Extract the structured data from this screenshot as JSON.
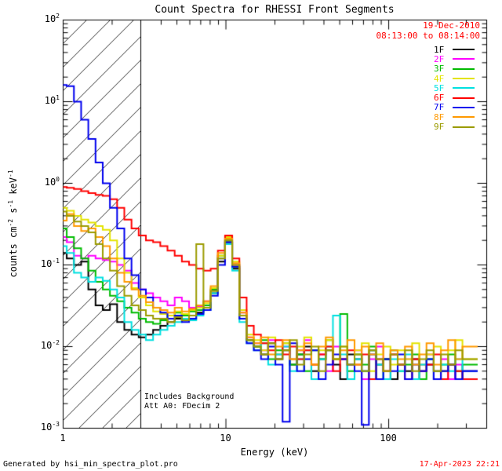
{
  "title": "Count Spectra for RHESSI Front Segments",
  "annotations": {
    "date": "19-Dec-2010",
    "time_range": "08:13:00 to 08:14:00",
    "includes_background": "Includes Background",
    "attenuator": "Att A0: FDecim 2",
    "generated_by": "Generated by hsi_min_spectra_plot.pro",
    "generated_date": "17-Apr-2023 22:21"
  },
  "colors": {
    "background": "#FFFFFF",
    "axis": "#000000",
    "annotation_red": "#FF0000"
  },
  "chart_data": {
    "type": "line",
    "mode": "histogram-step",
    "x_scale": "log",
    "y_scale": "log",
    "xlim": [
      1,
      400
    ],
    "ylim": [
      0.001,
      100
    ],
    "xlabel": "Energy (keV)",
    "ylabel": "counts cm^-2 s^-1 keV^-1",
    "ylabel_parts": [
      {
        "t": "counts cm"
      },
      {
        "t": "-2",
        "sup": true
      },
      {
        "t": " s"
      },
      {
        "t": "-1",
        "sup": true
      },
      {
        "t": " keV"
      },
      {
        "t": "-1",
        "sup": true
      }
    ],
    "x_ticks": [
      1,
      10,
      100
    ],
    "x_tick_labels": [
      "1",
      "10",
      "100"
    ],
    "y_ticks": [
      0.001,
      0.01,
      0.1,
      1,
      10,
      100
    ],
    "y_tick_labels": [
      "10^-3",
      "10^-2",
      "10^-1",
      "10^0",
      "10^1",
      "10^2"
    ],
    "grid": false,
    "legend_position": "top-right-inside",
    "hatched_region": {
      "x_min": 1,
      "x_max": 3,
      "style": "diagonal-hatch"
    },
    "energies_keV": [
      1.0,
      1.107,
      1.226,
      1.357,
      1.503,
      1.664,
      1.842,
      2.039,
      2.258,
      2.5,
      2.768,
      3.064,
      3.392,
      3.756,
      4.158,
      4.604,
      5.097,
      5.643,
      6.247,
      6.917,
      7.658,
      8.478,
      9.387,
      10.39,
      11.5,
      12.74,
      14.1,
      15.61,
      17.28,
      19.13,
      21.18,
      23.45,
      25.97,
      28.75,
      31.83,
      35.24,
      39.01,
      43.19,
      47.82,
      52.94,
      58.61,
      64.89,
      71.84,
      79.54,
      88.06,
      97.5,
      107.9,
      119.5,
      132.3,
      146.5,
      162.2,
      179.6,
      198.8,
      220.1,
      243.7,
      269.8,
      298.7
    ],
    "series": [
      {
        "name": "1F",
        "color": "#000000",
        "values": [
          0.14,
          0.12,
          0.1,
          0.11,
          0.05,
          0.032,
          0.028,
          0.033,
          0.02,
          0.016,
          0.014,
          0.013,
          0.014,
          0.016,
          0.018,
          0.02,
          0.022,
          0.025,
          0.024,
          0.026,
          0.03,
          0.045,
          0.11,
          0.19,
          0.09,
          0.022,
          0.012,
          0.01,
          0.008,
          0.011,
          0.007,
          0.009,
          0.006,
          0.008,
          0.01,
          0.005,
          0.007,
          0.009,
          0.006,
          0.004,
          0.008,
          0.007,
          0.005,
          0.009,
          0.006,
          0.007,
          0.004,
          0.006,
          0.005,
          0.007,
          0.005,
          0.006,
          0.004,
          0.005,
          0.006,
          0.004,
          0.005
        ]
      },
      {
        "name": "2F",
        "color": "#FF00FF",
        "values": [
          0.22,
          0.19,
          0.13,
          0.12,
          0.13,
          0.12,
          0.115,
          0.11,
          0.1,
          0.085,
          0.06,
          0.05,
          0.045,
          0.04,
          0.036,
          0.032,
          0.04,
          0.036,
          0.03,
          0.031,
          0.036,
          0.05,
          0.12,
          0.21,
          0.1,
          0.026,
          0.013,
          0.011,
          0.009,
          0.012,
          0.008,
          0.01,
          0.007,
          0.009,
          0.012,
          0.006,
          0.008,
          0.005,
          0.01,
          0.007,
          0.006,
          0.009,
          0.004,
          0.007,
          0.01,
          0.005,
          0.008,
          0.006,
          0.007,
          0.004,
          0.006,
          0.008,
          0.005,
          0.007,
          0.004,
          0.006,
          0.005
        ]
      },
      {
        "name": "3F",
        "color": "#00BB00",
        "values": [
          0.28,
          0.22,
          0.16,
          0.12,
          0.085,
          0.062,
          0.05,
          0.042,
          0.036,
          0.03,
          0.026,
          0.022,
          0.02,
          0.019,
          0.021,
          0.024,
          0.026,
          0.024,
          0.027,
          0.028,
          0.032,
          0.05,
          0.13,
          0.2,
          0.095,
          0.024,
          0.012,
          0.01,
          0.012,
          0.007,
          0.009,
          0.011,
          0.006,
          0.008,
          0.005,
          0.009,
          0.007,
          0.012,
          0.007,
          0.025,
          0.005,
          0.008,
          0.006,
          0.01,
          0.004,
          0.007,
          0.009,
          0.005,
          0.006,
          0.008,
          0.004,
          0.007,
          0.005,
          0.006,
          0.008,
          0.005,
          0.006
        ]
      },
      {
        "name": "4F",
        "color": "#E3E300",
        "values": [
          0.5,
          0.46,
          0.4,
          0.36,
          0.33,
          0.3,
          0.27,
          0.2,
          0.12,
          0.08,
          0.052,
          0.04,
          0.032,
          0.027,
          0.025,
          0.024,
          0.027,
          0.025,
          0.028,
          0.03,
          0.034,
          0.052,
          0.13,
          0.22,
          0.11,
          0.028,
          0.014,
          0.012,
          0.009,
          0.013,
          0.008,
          0.011,
          0.007,
          0.01,
          0.013,
          0.006,
          0.009,
          0.012,
          0.007,
          0.01,
          0.006,
          0.009,
          0.011,
          0.005,
          0.008,
          0.01,
          0.006,
          0.009,
          0.007,
          0.011,
          0.006,
          0.008,
          0.01,
          0.005,
          0.009,
          0.012,
          0.007
        ]
      },
      {
        "name": "5F",
        "color": "#00E0E0",
        "values": [
          0.17,
          0.14,
          0.08,
          0.07,
          0.062,
          0.07,
          0.064,
          0.05,
          0.04,
          0.02,
          0.016,
          0.014,
          0.012,
          0.014,
          0.016,
          0.018,
          0.02,
          0.022,
          0.021,
          0.024,
          0.028,
          0.045,
          0.12,
          0.18,
          0.085,
          0.02,
          0.011,
          0.009,
          0.011,
          0.006,
          0.008,
          0.01,
          0.005,
          0.007,
          0.009,
          0.004,
          0.007,
          0.01,
          0.024,
          0.008,
          0.004,
          0.007,
          0.005,
          0.009,
          0.006,
          0.004,
          0.007,
          0.005,
          0.008,
          0.004,
          0.006,
          0.007,
          0.004,
          0.006,
          0.005,
          0.007,
          0.005
        ]
      },
      {
        "name": "6F",
        "color": "#FF0000",
        "values": [
          0.9,
          0.88,
          0.85,
          0.8,
          0.76,
          0.72,
          0.7,
          0.64,
          0.5,
          0.36,
          0.28,
          0.23,
          0.2,
          0.19,
          0.17,
          0.15,
          0.13,
          0.11,
          0.1,
          0.09,
          0.085,
          0.09,
          0.15,
          0.23,
          0.12,
          0.04,
          0.018,
          0.014,
          0.011,
          0.009,
          0.012,
          0.008,
          0.01,
          0.007,
          0.009,
          0.006,
          0.008,
          0.01,
          0.005,
          0.007,
          0.009,
          0.006,
          0.008,
          0.004,
          0.007,
          0.005,
          0.008,
          0.006,
          0.004,
          0.007,
          0.005,
          0.006,
          0.008,
          0.004,
          0.006,
          0.005,
          0.004
        ]
      },
      {
        "name": "7F",
        "color": "#0000EE",
        "values": [
          16,
          15.5,
          10,
          6,
          3.5,
          1.8,
          1.0,
          0.5,
          0.28,
          0.12,
          0.075,
          0.05,
          0.04,
          0.03,
          0.026,
          0.022,
          0.024,
          0.02,
          0.022,
          0.025,
          0.028,
          0.042,
          0.1,
          0.19,
          0.095,
          0.022,
          0.011,
          0.009,
          0.007,
          0.01,
          0.006,
          0.0012,
          0.011,
          0.005,
          0.007,
          0.009,
          0.004,
          0.006,
          0.008,
          0.007,
          0.006,
          0.005,
          0.0011,
          0.008,
          0.004,
          0.007,
          0.005,
          0.008,
          0.004,
          0.006,
          0.005,
          0.007,
          0.004,
          0.005,
          0.006,
          0.004,
          0.005
        ]
      },
      {
        "name": "8F",
        "color": "#FF9900",
        "values": [
          0.35,
          0.42,
          0.3,
          0.26,
          0.28,
          0.22,
          0.17,
          0.12,
          0.08,
          0.062,
          0.05,
          0.042,
          0.035,
          0.03,
          0.028,
          0.026,
          0.03,
          0.027,
          0.029,
          0.032,
          0.036,
          0.055,
          0.14,
          0.21,
          0.105,
          0.026,
          0.013,
          0.011,
          0.013,
          0.008,
          0.01,
          0.012,
          0.007,
          0.009,
          0.011,
          0.006,
          0.01,
          0.013,
          0.007,
          0.009,
          0.012,
          0.006,
          0.01,
          0.008,
          0.011,
          0.005,
          0.009,
          0.007,
          0.01,
          0.006,
          0.008,
          0.011,
          0.006,
          0.009,
          0.012,
          0.007,
          0.01
        ]
      },
      {
        "name": "9F",
        "color": "#9B9B00",
        "values": [
          0.45,
          0.4,
          0.34,
          0.3,
          0.25,
          0.18,
          0.12,
          0.085,
          0.055,
          0.042,
          0.032,
          0.028,
          0.024,
          0.022,
          0.022,
          0.02,
          0.023,
          0.021,
          0.024,
          0.18,
          0.03,
          0.048,
          0.12,
          0.2,
          0.1,
          0.024,
          0.012,
          0.01,
          0.008,
          0.011,
          0.007,
          0.009,
          0.012,
          0.006,
          0.008,
          0.01,
          0.005,
          0.009,
          0.007,
          0.01,
          0.006,
          0.008,
          0.005,
          0.009,
          0.007,
          0.005,
          0.008,
          0.006,
          0.009,
          0.005,
          0.007,
          0.009,
          0.005,
          0.008,
          0.006,
          0.009,
          0.007
        ]
      }
    ]
  }
}
